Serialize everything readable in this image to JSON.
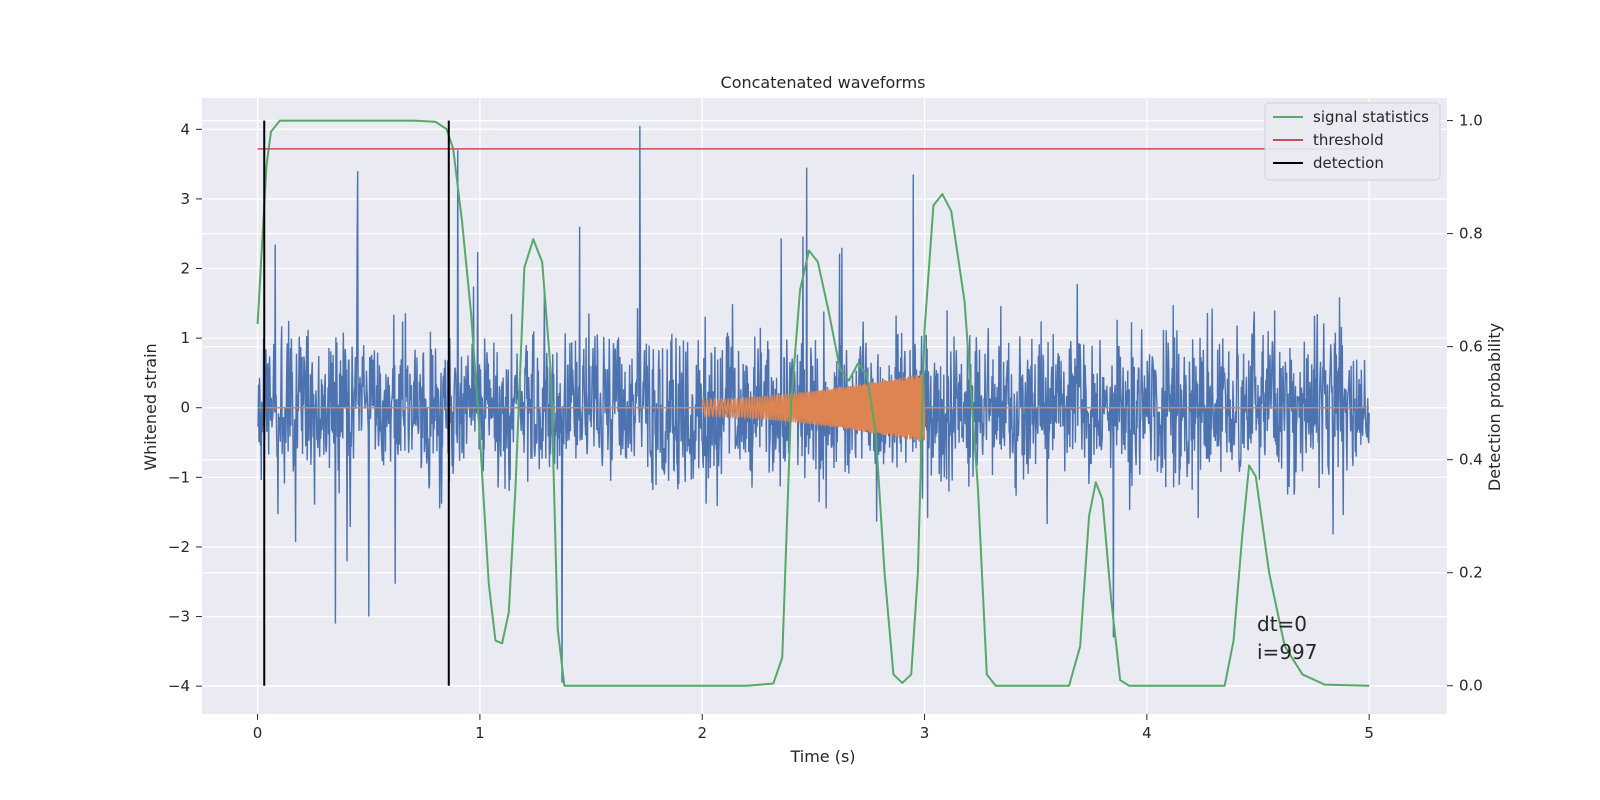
{
  "chart_data": {
    "type": "line",
    "title": "Concatenated waveforms",
    "xlabel": "Time (s)",
    "ylabel": "Whitened strain",
    "ylabel_right": "Detection probability",
    "xlim": [
      -0.25,
      5.35
    ],
    "ylim": [
      -4.4,
      4.45
    ],
    "ylim_right": [
      -0.05,
      1.04
    ],
    "x_ticks": [
      0,
      1,
      2,
      3,
      4,
      5
    ],
    "y_ticks": [
      -4,
      -3,
      -2,
      -1,
      0,
      1,
      2,
      3,
      4
    ],
    "y_ticks_right": [
      0.0,
      0.2,
      0.4,
      0.6,
      0.8,
      1.0
    ],
    "x_tick_labels": [
      "0",
      "1",
      "2",
      "3",
      "4",
      "5"
    ],
    "y_tick_labels": [
      "−4",
      "−3",
      "−2",
      "−1",
      "0",
      "1",
      "2",
      "3",
      "4"
    ],
    "y_tick_labels_right": [
      "0.0",
      "0.2",
      "0.4",
      "0.6",
      "0.8",
      "1.0"
    ],
    "grid": true,
    "legend_position": "top-right",
    "background": "#eaeaf2",
    "series": [
      {
        "name": "",
        "color": "#4c72b0",
        "axis": "left",
        "kind": "noise",
        "x_range": [
          0,
          5
        ],
        "typical_amplitude": [
          -2.3,
          2.4
        ],
        "extremes": [
          {
            "x": 0.45,
            "y": 3.4
          },
          {
            "x": 0.9,
            "y": 3.7
          },
          {
            "x": 1.72,
            "y": 4.05
          },
          {
            "x": 2.47,
            "y": 3.45
          },
          {
            "x": 2.95,
            "y": 3.35
          },
          {
            "x": 0.5,
            "y": -3.0
          },
          {
            "x": 1.37,
            "y": -3.95
          },
          {
            "x": 3.85,
            "y": -3.3
          },
          {
            "x": 0.35,
            "y": -3.1
          }
        ]
      },
      {
        "name": "",
        "color": "#dd8452",
        "axis": "left",
        "kind": "chirp",
        "x_range": [
          2,
          3
        ],
        "amplitude_start": 0.12,
        "amplitude_end": 0.5
      },
      {
        "name": "signal statistics",
        "color": "#55a868",
        "axis": "right",
        "points": [
          [
            0.0,
            0.64
          ],
          [
            0.02,
            0.78
          ],
          [
            0.04,
            0.92
          ],
          [
            0.06,
            0.98
          ],
          [
            0.1,
            1.0
          ],
          [
            0.7,
            1.0
          ],
          [
            0.8,
            0.998
          ],
          [
            0.85,
            0.985
          ],
          [
            0.88,
            0.95
          ],
          [
            0.92,
            0.82
          ],
          [
            0.96,
            0.66
          ],
          [
            1.0,
            0.44
          ],
          [
            1.04,
            0.18
          ],
          [
            1.07,
            0.08
          ],
          [
            1.1,
            0.075
          ],
          [
            1.13,
            0.13
          ],
          [
            1.16,
            0.35
          ],
          [
            1.2,
            0.74
          ],
          [
            1.24,
            0.79
          ],
          [
            1.28,
            0.75
          ],
          [
            1.32,
            0.55
          ],
          [
            1.35,
            0.1
          ],
          [
            1.38,
            0.0
          ],
          [
            2.2,
            0.0
          ],
          [
            2.32,
            0.004
          ],
          [
            2.36,
            0.05
          ],
          [
            2.4,
            0.5
          ],
          [
            2.44,
            0.7
          ],
          [
            2.48,
            0.77
          ],
          [
            2.52,
            0.75
          ],
          [
            2.57,
            0.66
          ],
          [
            2.62,
            0.56
          ],
          [
            2.66,
            0.54
          ],
          [
            2.7,
            0.57
          ],
          [
            2.74,
            0.55
          ],
          [
            2.78,
            0.45
          ],
          [
            2.82,
            0.2
          ],
          [
            2.86,
            0.02
          ],
          [
            2.9,
            0.005
          ],
          [
            2.94,
            0.02
          ],
          [
            2.97,
            0.2
          ],
          [
            3.0,
            0.63
          ],
          [
            3.04,
            0.85
          ],
          [
            3.08,
            0.87
          ],
          [
            3.12,
            0.84
          ],
          [
            3.18,
            0.68
          ],
          [
            3.24,
            0.35
          ],
          [
            3.28,
            0.02
          ],
          [
            3.32,
            0.0
          ],
          [
            3.65,
            0.0
          ],
          [
            3.7,
            0.07
          ],
          [
            3.74,
            0.3
          ],
          [
            3.77,
            0.36
          ],
          [
            3.8,
            0.33
          ],
          [
            3.84,
            0.15
          ],
          [
            3.88,
            0.01
          ],
          [
            3.92,
            0.0
          ],
          [
            4.35,
            0.0
          ],
          [
            4.39,
            0.08
          ],
          [
            4.43,
            0.27
          ],
          [
            4.46,
            0.39
          ],
          [
            4.49,
            0.37
          ],
          [
            4.55,
            0.2
          ],
          [
            4.62,
            0.07
          ],
          [
            4.7,
            0.02
          ],
          [
            4.8,
            0.002
          ],
          [
            5.0,
            0.0
          ]
        ]
      },
      {
        "name": "threshold",
        "color": "#c44e52",
        "axis": "right",
        "points": [
          [
            0,
            0.95
          ],
          [
            5,
            0.95
          ]
        ]
      },
      {
        "name": "detection",
        "color": "#000000",
        "axis": "right",
        "kind": "vlines",
        "x": [
          0.03,
          0.86
        ],
        "y_range": [
          0.0,
          1.0
        ]
      }
    ],
    "annotations": [
      "dt=0",
      "i=997"
    ]
  }
}
